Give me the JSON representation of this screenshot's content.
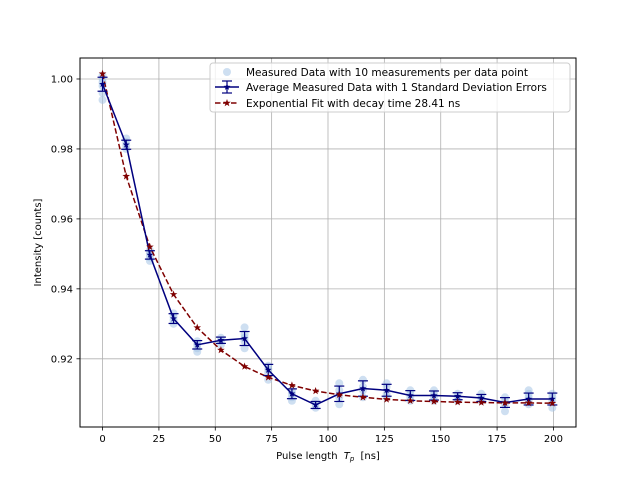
{
  "chart_data": {
    "type": "scatter",
    "xlabel": "Pulse length",
    "xlabel_math": "T",
    "xlabel_sub": "p",
    "xlabel_unit": "[ns]",
    "ylabel": "Intensity [counts]",
    "xlim": [
      -10,
      210
    ],
    "ylim": [
      0.9005,
      1.006
    ],
    "xticks": [
      0,
      25,
      50,
      75,
      100,
      125,
      150,
      175,
      200
    ],
    "yticks": [
      0.92,
      0.94,
      0.96,
      0.98,
      1.0
    ],
    "ytick_labels": [
      "0.92",
      "0.94",
      "0.96",
      "0.98",
      "1.00"
    ],
    "grid": true,
    "legend_position": "top-right",
    "colors": {
      "measured": "#a6c5e6",
      "average": "#00007f",
      "fit": "#7f0000",
      "grid": "#b0b0b0"
    },
    "series": [
      {
        "name": "Measured Data with 10 measurements per data point",
        "kind": "scatter",
        "points": [
          [
            0,
            0.994
          ],
          [
            0,
            0.996
          ],
          [
            0,
            0.998
          ],
          [
            0,
            0.999
          ],
          [
            0,
            1.0
          ],
          [
            0,
            1.001
          ],
          [
            10.5,
            0.98
          ],
          [
            10.5,
            0.981
          ],
          [
            10.5,
            0.982
          ],
          [
            10.5,
            0.983
          ],
          [
            21,
            0.948
          ],
          [
            21,
            0.949
          ],
          [
            21,
            0.95
          ],
          [
            21,
            0.951
          ],
          [
            31.5,
            0.93
          ],
          [
            31.5,
            0.931
          ],
          [
            31.5,
            0.932
          ],
          [
            31.5,
            0.933
          ],
          [
            42,
            0.922
          ],
          [
            42,
            0.923
          ],
          [
            42,
            0.924
          ],
          [
            42,
            0.925
          ],
          [
            52.5,
            0.924
          ],
          [
            52.5,
            0.925
          ],
          [
            52.5,
            0.926
          ],
          [
            63,
            0.923
          ],
          [
            63,
            0.925
          ],
          [
            63,
            0.926
          ],
          [
            63,
            0.927
          ],
          [
            63,
            0.929
          ],
          [
            73.5,
            0.914
          ],
          [
            73.5,
            0.916
          ],
          [
            73.5,
            0.917
          ],
          [
            73.5,
            0.918
          ],
          [
            84,
            0.908
          ],
          [
            84,
            0.909
          ],
          [
            84,
            0.91
          ],
          [
            84,
            0.911
          ],
          [
            94.5,
            0.906
          ],
          [
            94.5,
            0.907
          ],
          [
            94.5,
            0.908
          ],
          [
            105,
            0.907
          ],
          [
            105,
            0.909
          ],
          [
            105,
            0.911
          ],
          [
            105,
            0.913
          ],
          [
            115.5,
            0.909
          ],
          [
            115.5,
            0.911
          ],
          [
            115.5,
            0.912
          ],
          [
            115.5,
            0.914
          ],
          [
            126,
            0.909
          ],
          [
            126,
            0.91
          ],
          [
            126,
            0.912
          ],
          [
            126,
            0.913
          ],
          [
            136.5,
            0.908
          ],
          [
            136.5,
            0.909
          ],
          [
            136.5,
            0.91
          ],
          [
            136.5,
            0.911
          ],
          [
            147,
            0.908
          ],
          [
            147,
            0.909
          ],
          [
            147,
            0.91
          ],
          [
            147,
            0.911
          ],
          [
            157.5,
            0.908
          ],
          [
            157.5,
            0.909
          ],
          [
            157.5,
            0.91
          ],
          [
            168,
            0.908
          ],
          [
            168,
            0.909
          ],
          [
            168,
            0.91
          ],
          [
            178.5,
            0.905
          ],
          [
            178.5,
            0.907
          ],
          [
            178.5,
            0.908
          ],
          [
            178.5,
            0.909
          ],
          [
            189,
            0.907
          ],
          [
            189,
            0.908
          ],
          [
            189,
            0.909
          ],
          [
            189,
            0.91
          ],
          [
            189,
            0.911
          ],
          [
            199.5,
            0.906
          ],
          [
            199.5,
            0.908
          ],
          [
            199.5,
            0.909
          ],
          [
            199.5,
            0.91
          ]
        ]
      },
      {
        "name": "Average Measured Data with 1 Standard Deviation Errors",
        "kind": "errorbar",
        "x": [
          0,
          10.5,
          21,
          31.5,
          42,
          52.5,
          63,
          73.5,
          84,
          94.5,
          105,
          115.5,
          126,
          136.5,
          147,
          157.5,
          168,
          178.5,
          189,
          199.5
        ],
        "y": [
          0.9985,
          0.9812,
          0.9497,
          0.9315,
          0.924,
          0.9253,
          0.9258,
          0.9168,
          0.91,
          0.9068,
          0.91,
          0.9115,
          0.911,
          0.9095,
          0.9095,
          0.9093,
          0.9088,
          0.9075,
          0.9085,
          0.9085
        ],
        "yerr": [
          0.002,
          0.0013,
          0.0012,
          0.0014,
          0.0012,
          0.0009,
          0.002,
          0.0016,
          0.0014,
          0.001,
          0.0022,
          0.0022,
          0.0017,
          0.0014,
          0.0013,
          0.001,
          0.001,
          0.0014,
          0.0017,
          0.0017
        ]
      },
      {
        "name": "Exponential Fit with decay time 28.41 ns",
        "kind": "fit",
        "x": [
          0,
          10.5,
          21,
          31.5,
          42,
          52.5,
          63,
          73.5,
          84,
          94.5,
          105,
          115.5,
          126,
          136.5,
          147,
          157.5,
          168,
          178.5,
          189,
          199.5
        ],
        "y": [
          1.0015,
          0.9722,
          0.952,
          0.9384,
          0.9289,
          0.9225,
          0.9178,
          0.9147,
          0.9124,
          0.9108,
          0.9097,
          0.909,
          0.9084,
          0.908,
          0.9078,
          0.9076,
          0.9075,
          0.9074,
          0.9074,
          0.9073
        ]
      }
    ]
  }
}
